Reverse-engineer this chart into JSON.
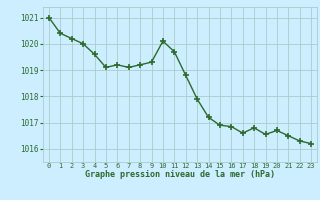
{
  "x": [
    0,
    1,
    2,
    3,
    4,
    5,
    6,
    7,
    8,
    9,
    10,
    11,
    12,
    13,
    14,
    15,
    16,
    17,
    18,
    19,
    20,
    21,
    22,
    23
  ],
  "y": [
    1021.0,
    1020.4,
    1020.2,
    1020.0,
    1019.6,
    1019.1,
    1019.2,
    1019.1,
    1019.2,
    1019.3,
    1020.1,
    1019.7,
    1018.8,
    1017.9,
    1017.2,
    1016.9,
    1016.85,
    1016.6,
    1016.8,
    1016.55,
    1016.7,
    1016.5,
    1016.3,
    1016.2
  ],
  "line_color": "#2d6a2d",
  "marker_color": "#2d6a2d",
  "bg_color": "#cceeff",
  "grid_color": "#aacccc",
  "xlabel": "Graphe pression niveau de la mer (hPa)",
  "xlabel_color": "#2d6a2d",
  "tick_color": "#2d6a2d",
  "ylim": [
    1015.5,
    1021.4
  ],
  "xlim": [
    -0.5,
    23.5
  ],
  "yticks": [
    1016,
    1017,
    1018,
    1019,
    1020,
    1021
  ],
  "xticks": [
    0,
    1,
    2,
    3,
    4,
    5,
    6,
    7,
    8,
    9,
    10,
    11,
    12,
    13,
    14,
    15,
    16,
    17,
    18,
    19,
    20,
    21,
    22,
    23
  ],
  "xtick_labels": [
    "0",
    "1",
    "2",
    "3",
    "4",
    "5",
    "6",
    "7",
    "8",
    "9",
    "10",
    "11",
    "12",
    "13",
    "14",
    "15",
    "16",
    "17",
    "18",
    "19",
    "20",
    "21",
    "22",
    "23"
  ],
  "marker_size": 4,
  "line_width": 1.0,
  "font_family": "monospace"
}
